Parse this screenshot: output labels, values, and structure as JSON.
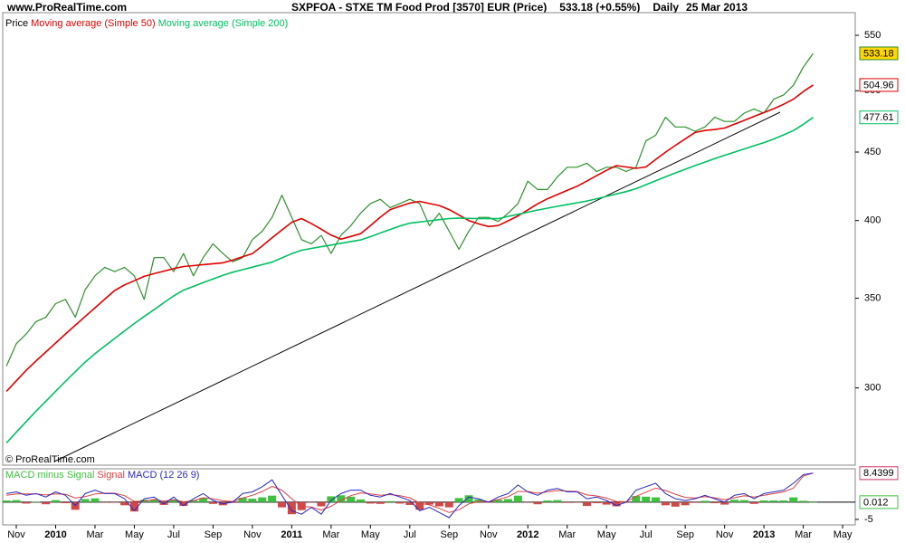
{
  "header": {
    "site": "www.ProRealTime.com",
    "watermark": "© ProRealTime.com"
  },
  "chart_data": [
    {
      "type": "line",
      "title": "SXPFOA - STXE TM Food Prod [3570] EUR (Price)",
      "change": "533.18 (+0.55%)",
      "period": "Daily",
      "date": "25 Mar 2013",
      "log": true,
      "ylim": [
        262.7,
        571.8
      ],
      "yticks": [
        300,
        350,
        400,
        450,
        500,
        550
      ],
      "series": [
        {
          "name": "Price",
          "color": "#2f8f2f",
          "tag_color": "#ffd700",
          "values": [
            null,
            311.5,
            323.7,
            329.1,
            336.2,
            338.7,
            346.8,
            349.3,
            338.7,
            355.2,
            363.8,
            369.1,
            366.4,
            369.1,
            363.8,
            349.3,
            375.3,
            375.3,
            366.4,
            378.0,
            363.8,
            375.3,
            384.3,
            378.0,
            372.6,
            375.3,
            387.1,
            392.7,
            402.2,
            417.9,
            402.2,
            387.1,
            384.3,
            389.9,
            378.0,
            389.9,
            396.5,
            405.1,
            411.9,
            414.9,
            409.0,
            411.9,
            414.9,
            411.9,
            396.5,
            405.1,
            392.7,
            380.7,
            392.7,
            402.2,
            402.2,
            399.4,
            405.1,
            411.9,
            428.0,
            421.9,
            421.9,
            431.1,
            438.4,
            438.4,
            441.5,
            435.2,
            438.4,
            438.4,
            435.2,
            438.4,
            458.7,
            463.1,
            477.7,
            469.8,
            469.8,
            466.4,
            469.8,
            477.7,
            474.3,
            474.3,
            481.1,
            484.6,
            481.1,
            492.8,
            496.4,
            504.7,
            520.6,
            533.18,
            null,
            null,
            null
          ]
        },
        {
          "name": "Moving average (Simple 50)",
          "color": "#e00000",
          "values": [
            null,
            298.2,
            303.7,
            309.2,
            314.2,
            319.1,
            324.1,
            329.1,
            334.1,
            339.2,
            344.3,
            349.5,
            354.7,
            358.1,
            360.7,
            363.4,
            365.1,
            366.7,
            368.3,
            369.6,
            370.2,
            370.8,
            371.4,
            372.0,
            373.7,
            375.8,
            377.9,
            382.9,
            388.3,
            393.6,
            398.8,
            401.4,
            397.9,
            394.1,
            390.1,
            387.4,
            389.2,
            391.1,
            396.5,
            402.3,
            407.6,
            409.9,
            412.2,
            413.4,
            411.9,
            410.5,
            407.6,
            403.8,
            400.0,
            397.7,
            395.9,
            396.6,
            399.8,
            403.2,
            407.4,
            411.7,
            415.3,
            418.3,
            421.3,
            424.3,
            428.1,
            432.1,
            436.1,
            439.6,
            438.6,
            437.6,
            438.6,
            444.2,
            449.9,
            455.2,
            460.3,
            465.4,
            467.0,
            467.8,
            468.9,
            472.1,
            475.2,
            478.4,
            481.6,
            484.8,
            488.5,
            492.8,
            499.3,
            504.96,
            null,
            null,
            null
          ]
        },
        {
          "name": "Moving average (Simple 200)",
          "color": "#00c060",
          "values": [
            null,
            272.9,
            278.0,
            283.1,
            288.2,
            293.2,
            298.3,
            303.4,
            308.5,
            313.6,
            318.2,
            322.4,
            326.6,
            330.9,
            335.1,
            339.2,
            343.2,
            347.3,
            351.4,
            354.9,
            357.2,
            359.5,
            361.8,
            364.1,
            366.0,
            367.6,
            369.2,
            370.8,
            372.4,
            375.1,
            377.9,
            380.1,
            381.3,
            382.4,
            383.5,
            384.7,
            385.8,
            386.9,
            389.1,
            391.5,
            393.9,
            396.3,
            398.2,
            399.0,
            399.8,
            400.6,
            401.4,
            401.6,
            401.5,
            401.4,
            401.3,
            401.3,
            402.9,
            404.3,
            405.8,
            407.3,
            408.6,
            409.9,
            411.1,
            412.4,
            413.7,
            415.3,
            417.0,
            418.7,
            420.4,
            422.5,
            425.4,
            428.3,
            431.2,
            434.1,
            436.9,
            439.6,
            442.3,
            444.9,
            447.5,
            449.9,
            452.4,
            454.9,
            457.3,
            460.2,
            463.5,
            466.9,
            471.9,
            477.61,
            null,
            null,
            null
          ]
        }
      ]
    },
    {
      "type": "combo",
      "ylim": [
        -6.6,
        9.7
      ],
      "yticks": [
        -5
      ],
      "categories": [
        null,
        null,
        "Nov",
        null,
        null,
        null,
        "2010",
        null,
        null,
        null,
        "Mar",
        null,
        null,
        null,
        "May",
        null,
        null,
        null,
        "Jul",
        null,
        null,
        null,
        "Sep",
        null,
        null,
        null,
        "Nov",
        null,
        null,
        null,
        "2011",
        null,
        null,
        null,
        "Mar",
        null,
        null,
        null,
        "May",
        null,
        null,
        null,
        "Jul",
        null,
        null,
        null,
        "Sep",
        null,
        null,
        null,
        "Nov",
        null,
        null,
        null,
        "2012",
        null,
        null,
        null,
        "Mar",
        null,
        null,
        null,
        "May",
        null,
        null,
        null,
        "Jul",
        null,
        null,
        null,
        "Sep",
        null,
        null,
        null,
        "Nov",
        null,
        null,
        null,
        "2013",
        null,
        null,
        null,
        "Mar",
        null,
        null,
        null,
        "May"
      ],
      "series": [
        {
          "name": "MACD minus Signal",
          "kind": "bar",
          "color": "#40c040",
          "negative_color": "#d04848",
          "values": [
            null,
            0.5,
            0.6,
            -0.4,
            0.1,
            -0.6,
            0.6,
            -0.3,
            -2.2,
            0.9,
            1.1,
            -0.1,
            -0.1,
            -0.9,
            -2.7,
            0.7,
            0.7,
            -0.8,
            0.8,
            -1.1,
            0.6,
            1.2,
            -0.5,
            -0.9,
            -0.2,
            1.3,
            1,
            1.4,
            1.9,
            -1.5,
            -3.5,
            -2.3,
            -0.1,
            -1.2,
            1.7,
            2,
            1.6,
            0.8,
            -0.4,
            -0.5,
            0.3,
            -0.4,
            -0.8,
            -2.2,
            -0.7,
            -1.2,
            -1.5,
            1.2,
            2,
            0.8,
            -0.1,
            0.7,
            0.9,
            1.9,
            -0.1,
            -0.6,
            0.5,
            0.6,
            -0.2,
            -0.1,
            -1.1,
            -0.3,
            -0.7,
            -1.2,
            -0.1,
            1.8,
            1.6,
            1.4,
            -0.9,
            -1.3,
            -0.9,
            -0.2,
            0.4,
            -0.3,
            -0.7,
            0.7,
            0.6,
            -0.5,
            0.5,
            0.5,
            0.5,
            1.4,
            0.4,
            0.012,
            null,
            null,
            null
          ]
        },
        {
          "name": "Signal",
          "kind": "line",
          "color": "#e04040",
          "values": [
            null,
            2,
            2.4,
            2.4,
            2.4,
            2.1,
            2.4,
            2.3,
            1.2,
            1.6,
            2.4,
            2.6,
            2.6,
            1.9,
            0.2,
            0.3,
            0.8,
            0.3,
            0.7,
            0.1,
            0.4,
            1.3,
            1,
            0.4,
            0.2,
            1.2,
            2,
            3.1,
            4.6,
            3.5,
            1,
            -1.2,
            -1.4,
            -2.3,
            -1.2,
            0.5,
            1.9,
            2.7,
            2.4,
            2,
            2.2,
            1.9,
            1.3,
            -0.3,
            -0.8,
            -1.8,
            -3,
            -2.2,
            -0.5,
            0.2,
            0.1,
            0.8,
            1.6,
            3.1,
            3.1,
            2.6,
            3,
            3.4,
            3.2,
            3.1,
            2.1,
            1.8,
            1.2,
            0.2,
            0.1,
            1.7,
            2.9,
            4.1,
            3.4,
            2.3,
            1.4,
            1.2,
            1.6,
            1.3,
            0.7,
            1.3,
            1.9,
            1.5,
            2,
            2.5,
            3,
            4.1,
            7.6,
            8.4279,
            null,
            null,
            null
          ]
        },
        {
          "name": "MACD (12 26 9)",
          "kind": "line",
          "color": "#2828c0",
          "tag_border": "#d04878",
          "values": [
            null,
            2.5,
            3,
            2,
            2.5,
            1.5,
            3,
            2,
            -1,
            2.5,
            3.5,
            2.5,
            2.5,
            1,
            -2.5,
            1,
            1.5,
            -0.5,
            1.5,
            -1,
            1,
            2.5,
            0.5,
            -0.5,
            0,
            2.5,
            3,
            4.5,
            6.5,
            2,
            -2.5,
            -3.5,
            -1.5,
            -3.5,
            0.5,
            2.5,
            3.5,
            3.5,
            2,
            1.5,
            2.5,
            1.5,
            0.5,
            -2.5,
            -1.5,
            -3,
            -4.5,
            -1,
            1.5,
            1,
            0,
            1.5,
            2.5,
            5,
            3,
            2,
            3.5,
            4,
            3,
            3,
            1,
            1.5,
            0.5,
            -1,
            0,
            3.5,
            4.5,
            5.5,
            2.5,
            1,
            0.5,
            1,
            2,
            1,
            0,
            2,
            2.5,
            1,
            2.5,
            3,
            3.5,
            5.5,
            8,
            8.4399,
            null,
            null,
            null
          ]
        }
      ]
    }
  ]
}
